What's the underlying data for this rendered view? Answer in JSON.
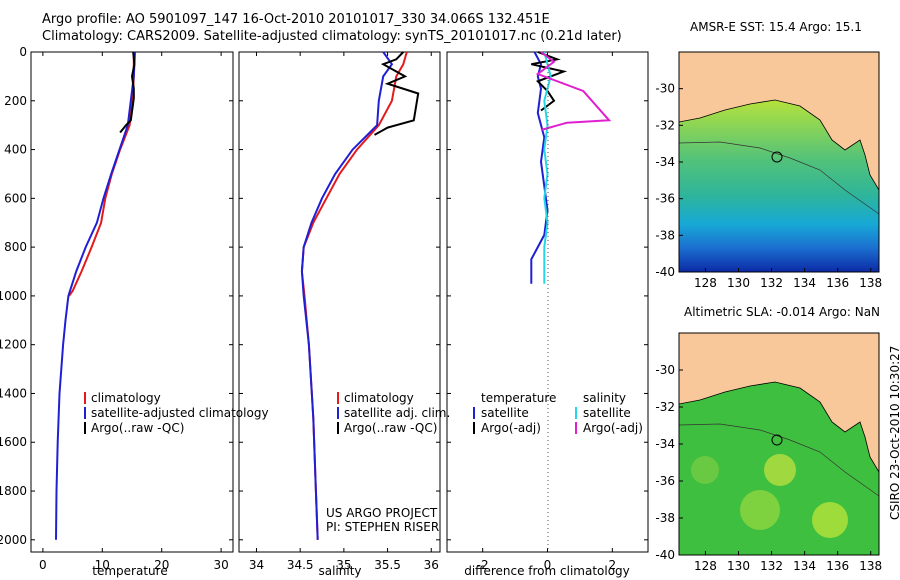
{
  "header": {
    "line1": "Argo profile: AO 5901097_147 16-Oct-2010 20101017_330 34.066S 132.451E",
    "line2": "Climatology: CARS2009. Satellite-adjusted climatology: synTS_20101017.nc (0.21d later)"
  },
  "credit": {
    "project": "US ARGO PROJECT",
    "pi": "PI: STEPHEN RISER",
    "stamp": "CSIRO 23-Oct-2010 10:30:27"
  },
  "colors": {
    "climatology": "#e41a1c",
    "satellite": "#1f1fd6",
    "argo": "#000000",
    "satellite_sal": "#22d8e6",
    "argo_sal": "#e020d0",
    "land": "#f8c79a"
  },
  "chart_data": [
    {
      "type": "line",
      "name": "temperature",
      "xlabel": "temperature",
      "ylabel": "",
      "xlim": [
        -2,
        32
      ],
      "ylim": [
        2050,
        0
      ],
      "xticks": [
        0,
        10,
        20,
        30
      ],
      "yticks": [
        0,
        200,
        400,
        600,
        800,
        1000,
        1200,
        1400,
        1600,
        1800,
        2000
      ],
      "legend": [
        "climatology",
        "satellite-adjusted climatology",
        "Argo(..raw -QC)"
      ],
      "series": [
        {
          "name": "climatology",
          "color": "#e41a1c",
          "x": [
            15.3,
            15.3,
            15.1,
            14.6,
            13.0,
            11.6,
            10.5,
            9.8,
            8.2,
            6.5,
            5.0,
            4.4
          ],
          "y": [
            0,
            100,
            200,
            300,
            400,
            500,
            600,
            700,
            800,
            900,
            980,
            1000
          ]
        },
        {
          "name": "satellite-adjusted climatology",
          "color": "#1f1fd6",
          "x": [
            15.5,
            15.3,
            14.8,
            14.3,
            12.9,
            11.5,
            10.2,
            9.1,
            7.2,
            5.6,
            4.3,
            3.8,
            3.4,
            2.8,
            2.5,
            2.3,
            2.2
          ],
          "y": [
            0,
            100,
            200,
            300,
            400,
            500,
            600,
            700,
            800,
            900,
            1000,
            1100,
            1200,
            1400,
            1600,
            1800,
            2000
          ]
        },
        {
          "name": "Argo(..raw -QC)",
          "color": "#000000",
          "x": [
            15.2,
            15.4,
            15.0,
            15.3,
            15.3,
            14.8,
            14.0,
            13.0
          ],
          "y": [
            0,
            50,
            100,
            150,
            190,
            280,
            300,
            330
          ]
        }
      ]
    },
    {
      "type": "line",
      "name": "salinity",
      "xlabel": "salinity",
      "xlim": [
        33.8,
        36.1
      ],
      "ylim": [
        2050,
        0
      ],
      "xticks": [
        34,
        34.5,
        35,
        35.5,
        36
      ],
      "legend": [
        "climatology",
        "satellite adj. clim.",
        "Argo(..raw -QC)"
      ],
      "series": [
        {
          "name": "climatology",
          "color": "#e41a1c",
          "x": [
            35.72,
            35.68,
            35.6,
            35.55,
            35.4,
            35.15,
            34.95,
            34.8,
            34.65,
            34.54,
            34.52,
            34.55,
            34.6,
            34.65,
            34.68,
            34.7
          ],
          "y": [
            0,
            50,
            100,
            200,
            300,
            400,
            500,
            600,
            700,
            800,
            900,
            1000,
            1200,
            1500,
            1800,
            2000
          ]
        },
        {
          "name": "satellite adj. clim.",
          "color": "#1f1fd6",
          "x": [
            35.45,
            35.55,
            35.45,
            35.4,
            35.38,
            35.1,
            34.9,
            34.75,
            34.63,
            34.54,
            34.52,
            34.54,
            34.6,
            34.65,
            34.68,
            34.7
          ],
          "y": [
            0,
            50,
            100,
            200,
            300,
            400,
            500,
            600,
            700,
            800,
            900,
            1000,
            1200,
            1500,
            1800,
            2000
          ]
        },
        {
          "name": "Argo(..raw -QC)",
          "color": "#000000",
          "x": [
            35.68,
            35.6,
            35.45,
            35.6,
            35.7,
            35.5,
            35.85,
            35.8,
            35.5,
            35.35
          ],
          "y": [
            0,
            30,
            50,
            80,
            100,
            130,
            170,
            280,
            310,
            340
          ]
        }
      ]
    },
    {
      "type": "line",
      "name": "difference",
      "xlabel": "difference from climatology",
      "xlim": [
        -3.1,
        3.1
      ],
      "ylim": [
        2050,
        0
      ],
      "xticks": [
        -2,
        0,
        2
      ],
      "legend": [
        "temperature",
        "satellite",
        "Argo(-adj)",
        "salinity",
        "satellite",
        "Argo(-adj)"
      ],
      "series": [
        {
          "name": "temperature satellite",
          "color": "#1f1fd6",
          "x": [
            -0.4,
            -0.2,
            -0.3,
            -0.2,
            -0.3,
            -0.1,
            -0.2,
            -0.1,
            0.0,
            -0.1,
            -0.3,
            -0.5,
            -0.5
          ],
          "y": [
            0,
            50,
            100,
            150,
            250,
            350,
            450,
            550,
            650,
            750,
            800,
            850,
            950
          ]
        },
        {
          "name": "temperature Argo(-adj)",
          "color": "#000000",
          "x": [
            -0.3,
            0.3,
            -0.5,
            0.5,
            -0.3,
            0.0,
            0.2,
            -0.2
          ],
          "y": [
            0,
            30,
            50,
            80,
            120,
            160,
            200,
            240
          ]
        },
        {
          "name": "salinity satellite",
          "color": "#22d8e6",
          "x": [
            -0.1,
            0.1,
            -0.1,
            0.0,
            -0.1,
            0.0,
            -0.1,
            0.0,
            -0.1,
            -0.1
          ],
          "y": [
            0,
            100,
            200,
            300,
            400,
            500,
            600,
            700,
            800,
            950
          ]
        },
        {
          "name": "salinity Argo(-adj)",
          "color": "#e020d0",
          "x": [
            -0.2,
            0.2,
            -0.3,
            1.1,
            1.9,
            0.6,
            -0.2
          ],
          "y": [
            0,
            40,
            90,
            160,
            280,
            290,
            320
          ]
        }
      ]
    },
    {
      "type": "heatmap",
      "name": "sst-map",
      "title": "AMSR-E SST: 15.4 Argo: 15.1",
      "xlim": [
        126.4,
        138.5
      ],
      "ylim": [
        -40,
        -28
      ],
      "xticks": [
        128,
        130,
        132,
        134,
        136,
        138
      ],
      "yticks": [
        -30,
        -32,
        -34,
        -36,
        -38,
        -40
      ],
      "marker": {
        "lon": 132.451,
        "lat": -34.066
      }
    },
    {
      "type": "heatmap",
      "name": "sla-map",
      "title": "Altimetric SLA: -0.014 Argo: NaN",
      "xlim": [
        126.4,
        138.5
      ],
      "ylim": [
        -40,
        -28
      ],
      "xticks": [
        128,
        130,
        132,
        134,
        136,
        138
      ],
      "yticks": [
        -30,
        -32,
        -34,
        -36,
        -38,
        -40
      ],
      "marker": {
        "lon": 132.451,
        "lat": -34.066
      }
    }
  ]
}
